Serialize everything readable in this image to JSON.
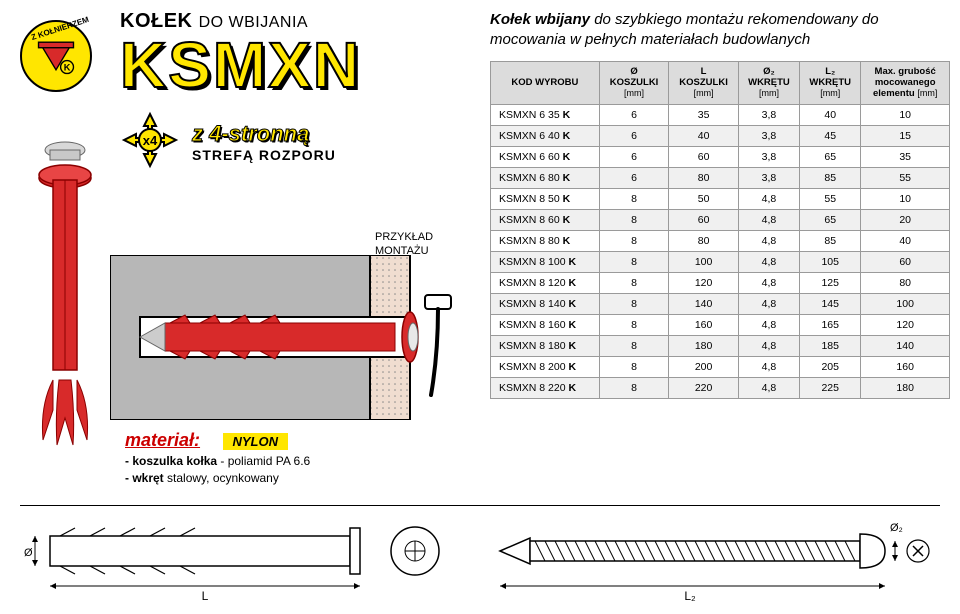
{
  "badge": {
    "label": "Z KOŁNIERZEM"
  },
  "title": {
    "main": "KOŁEK",
    "sub": "DO WBIJANIA"
  },
  "brand": "KSMXN",
  "feature": {
    "line1": "z 4-stronną",
    "line2": "STREFĄ ROZPORU"
  },
  "install_label_1": "PRZYKŁAD",
  "install_label_2": "MONTAŻU",
  "material": {
    "heading": "materiał:",
    "badge": "NYLON",
    "line1_b": "- koszulka kołka",
    "line1_r": " - poliamid PA 6.6",
    "line2_b": "- wkręt",
    "line2_r": " stalowy, ocynkowany"
  },
  "desc_b": "Kołek wbijany",
  "desc_r": " do szybkiego montażu rekomendowany do mocowania w pełnych materiałach budowlanych",
  "table": {
    "h1": "KOD WYROBU",
    "h2a": "Ø",
    "h2b": "KOSZULKI",
    "h2u": "[mm]",
    "h3a": "L",
    "h3b": "KOSZULKI",
    "h3u": "[mm]",
    "h4a": "Ø₂",
    "h4b": "WKRĘTU",
    "h4u": "[mm]",
    "h5a": "L₂",
    "h5b": "WKRĘTU",
    "h5u": "[mm]",
    "h6a": "Max. grubość",
    "h6b": "mocowanego",
    "h6c": "elementu",
    "h6u": "[mm]",
    "rows": [
      {
        "code": "KSMXN 6 35 K",
        "d": "6",
        "l": "35",
        "d2": "3,8",
        "l2": "40",
        "t": "10"
      },
      {
        "code": "KSMXN 6 40 K",
        "d": "6",
        "l": "40",
        "d2": "3,8",
        "l2": "45",
        "t": "15"
      },
      {
        "code": "KSMXN 6 60 K",
        "d": "6",
        "l": "60",
        "d2": "3,8",
        "l2": "65",
        "t": "35"
      },
      {
        "code": "KSMXN 6 80 K",
        "d": "6",
        "l": "80",
        "d2": "3,8",
        "l2": "85",
        "t": "55"
      },
      {
        "code": "KSMXN 8 50 K",
        "d": "8",
        "l": "50",
        "d2": "4,8",
        "l2": "55",
        "t": "10"
      },
      {
        "code": "KSMXN 8 60 K",
        "d": "8",
        "l": "60",
        "d2": "4,8",
        "l2": "65",
        "t": "20"
      },
      {
        "code": "KSMXN 8 80 K",
        "d": "8",
        "l": "80",
        "d2": "4,8",
        "l2": "85",
        "t": "40"
      },
      {
        "code": "KSMXN 8 100 K",
        "d": "8",
        "l": "100",
        "d2": "4,8",
        "l2": "105",
        "t": "60"
      },
      {
        "code": "KSMXN 8 120 K",
        "d": "8",
        "l": "120",
        "d2": "4,8",
        "l2": "125",
        "t": "80"
      },
      {
        "code": "KSMXN 8 140 K",
        "d": "8",
        "l": "140",
        "d2": "4,8",
        "l2": "145",
        "t": "100"
      },
      {
        "code": "KSMXN 8 160 K",
        "d": "8",
        "l": "160",
        "d2": "4,8",
        "l2": "165",
        "t": "120"
      },
      {
        "code": "KSMXN 8 180 K",
        "d": "8",
        "l": "180",
        "d2": "4,8",
        "l2": "185",
        "t": "140"
      },
      {
        "code": "KSMXN 8 200 K",
        "d": "8",
        "l": "200",
        "d2": "4,8",
        "l2": "205",
        "t": "160"
      },
      {
        "code": "KSMXN 8 220 K",
        "d": "8",
        "l": "220",
        "d2": "4,8",
        "l2": "225",
        "t": "180"
      }
    ]
  },
  "colors": {
    "yellow": "#ffe600",
    "red": "#d82a2a",
    "grey": "#b7b7b7",
    "wall": "#f0ddd0"
  },
  "tech": {
    "L": "L",
    "L2": "L₂",
    "D": "Ø",
    "D2": "Ø₂"
  }
}
